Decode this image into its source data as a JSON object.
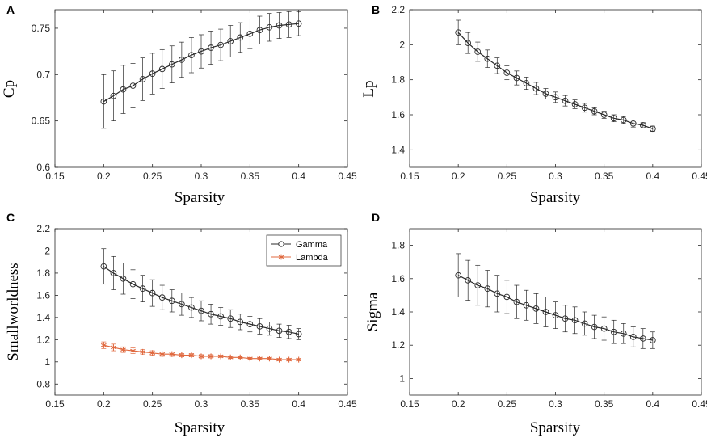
{
  "chart_data": [
    {
      "panel": "A",
      "type": "line",
      "xlabel": "Sparsity",
      "ylabel": "Cp",
      "xlim": [
        0.15,
        0.45
      ],
      "ylim": [
        0.6,
        0.77
      ],
      "xticks": [
        "0.15",
        "0.2",
        "0.25",
        "0.3",
        "0.35",
        "0.4",
        "0.45"
      ],
      "yticks": [
        "0.6",
        "0.65",
        "0.7",
        "0.75"
      ],
      "legend": null,
      "series": [
        {
          "name": "Cp",
          "marker": "circle",
          "color": "#2b2b2b",
          "x": [
            0.2,
            0.21,
            0.22,
            0.23,
            0.24,
            0.25,
            0.26,
            0.27,
            0.28,
            0.29,
            0.3,
            0.31,
            0.32,
            0.33,
            0.34,
            0.35,
            0.36,
            0.37,
            0.38,
            0.39,
            0.4
          ],
          "y": [
            0.671,
            0.677,
            0.684,
            0.688,
            0.695,
            0.701,
            0.706,
            0.711,
            0.716,
            0.721,
            0.725,
            0.729,
            0.732,
            0.736,
            0.74,
            0.744,
            0.748,
            0.751,
            0.753,
            0.754,
            0.755
          ],
          "err": [
            0.029,
            0.027,
            0.026,
            0.024,
            0.023,
            0.022,
            0.021,
            0.02,
            0.019,
            0.019,
            0.018,
            0.018,
            0.017,
            0.017,
            0.016,
            0.016,
            0.015,
            0.015,
            0.014,
            0.014,
            0.013
          ]
        }
      ]
    },
    {
      "panel": "B",
      "type": "line",
      "xlabel": "Sparsity",
      "ylabel": "Lp",
      "xlim": [
        0.15,
        0.45
      ],
      "ylim": [
        1.3,
        2.2
      ],
      "xticks": [
        "0.15",
        "0.2",
        "0.25",
        "0.3",
        "0.35",
        "0.4",
        "0.45"
      ],
      "yticks": [
        "1.4",
        "1.6",
        "1.8",
        "2",
        "2.2"
      ],
      "legend": null,
      "series": [
        {
          "name": "Lp",
          "marker": "circle",
          "color": "#2b2b2b",
          "x": [
            0.2,
            0.21,
            0.22,
            0.23,
            0.24,
            0.25,
            0.26,
            0.27,
            0.28,
            0.29,
            0.3,
            0.31,
            0.32,
            0.33,
            0.34,
            0.35,
            0.36,
            0.37,
            0.38,
            0.39,
            0.4
          ],
          "y": [
            2.07,
            2.01,
            1.96,
            1.92,
            1.88,
            1.84,
            1.81,
            1.78,
            1.75,
            1.72,
            1.7,
            1.68,
            1.66,
            1.64,
            1.62,
            1.6,
            1.58,
            1.57,
            1.55,
            1.54,
            1.52
          ],
          "err": [
            0.07,
            0.06,
            0.055,
            0.05,
            0.045,
            0.04,
            0.04,
            0.035,
            0.035,
            0.03,
            0.03,
            0.03,
            0.025,
            0.025,
            0.02,
            0.02,
            0.02,
            0.02,
            0.02,
            0.015,
            0.015
          ]
        }
      ]
    },
    {
      "panel": "C",
      "type": "line",
      "xlabel": "Sparsity",
      "ylabel": "Smallworldness",
      "xlim": [
        0.15,
        0.45
      ],
      "ylim": [
        0.7,
        2.2
      ],
      "xticks": [
        "0.15",
        "0.2",
        "0.25",
        "0.3",
        "0.35",
        "0.4",
        "0.45"
      ],
      "yticks": [
        "0.8",
        "1",
        "1.2",
        "1.4",
        "1.6",
        "1.8",
        "2",
        "2.2"
      ],
      "legend": {
        "position": "top-right",
        "entries": [
          "Gamma",
          "Lambda"
        ]
      },
      "series": [
        {
          "name": "Gamma",
          "marker": "circle",
          "color": "#2b2b2b",
          "x": [
            0.2,
            0.21,
            0.22,
            0.23,
            0.24,
            0.25,
            0.26,
            0.27,
            0.28,
            0.29,
            0.3,
            0.31,
            0.32,
            0.33,
            0.34,
            0.35,
            0.36,
            0.37,
            0.38,
            0.39,
            0.4
          ],
          "y": [
            1.86,
            1.8,
            1.75,
            1.7,
            1.66,
            1.62,
            1.58,
            1.55,
            1.52,
            1.49,
            1.46,
            1.43,
            1.41,
            1.39,
            1.36,
            1.34,
            1.32,
            1.3,
            1.28,
            1.27,
            1.25
          ],
          "err": [
            0.16,
            0.15,
            0.14,
            0.13,
            0.12,
            0.12,
            0.11,
            0.1,
            0.1,
            0.09,
            0.09,
            0.09,
            0.08,
            0.08,
            0.07,
            0.07,
            0.07,
            0.06,
            0.06,
            0.06,
            0.05
          ]
        },
        {
          "name": "Lambda",
          "marker": "star",
          "color": "#e0693f",
          "x": [
            0.2,
            0.21,
            0.22,
            0.23,
            0.24,
            0.25,
            0.26,
            0.27,
            0.28,
            0.29,
            0.3,
            0.31,
            0.32,
            0.33,
            0.34,
            0.35,
            0.36,
            0.37,
            0.38,
            0.39,
            0.4
          ],
          "y": [
            1.15,
            1.13,
            1.11,
            1.1,
            1.09,
            1.08,
            1.07,
            1.07,
            1.06,
            1.06,
            1.05,
            1.05,
            1.05,
            1.04,
            1.04,
            1.03,
            1.03,
            1.03,
            1.02,
            1.02,
            1.02
          ],
          "err": [
            0.03,
            0.03,
            0.025,
            0.025,
            0.02,
            0.02,
            0.02,
            0.02,
            0.015,
            0.015,
            0.015,
            0.015,
            0.01,
            0.01,
            0.01,
            0.01,
            0.01,
            0.01,
            0.01,
            0.01,
            0.01
          ]
        }
      ]
    },
    {
      "panel": "D",
      "type": "line",
      "xlabel": "Sparsity",
      "ylabel": "Sigma",
      "xlim": [
        0.15,
        0.45
      ],
      "ylim": [
        0.9,
        1.9
      ],
      "xticks": [
        "0.15",
        "0.2",
        "0.25",
        "0.3",
        "0.35",
        "0.4",
        "0.45"
      ],
      "yticks": [
        "1",
        "1.2",
        "1.4",
        "1.6",
        "1.8"
      ],
      "legend": null,
      "series": [
        {
          "name": "Sigma",
          "marker": "circle",
          "color": "#2b2b2b",
          "x": [
            0.2,
            0.21,
            0.22,
            0.23,
            0.24,
            0.25,
            0.26,
            0.27,
            0.28,
            0.29,
            0.3,
            0.31,
            0.32,
            0.33,
            0.34,
            0.35,
            0.36,
            0.37,
            0.38,
            0.39,
            0.4
          ],
          "y": [
            1.62,
            1.59,
            1.56,
            1.54,
            1.51,
            1.49,
            1.46,
            1.44,
            1.42,
            1.4,
            1.38,
            1.36,
            1.35,
            1.33,
            1.31,
            1.3,
            1.28,
            1.27,
            1.25,
            1.24,
            1.23
          ],
          "err": [
            0.13,
            0.12,
            0.12,
            0.11,
            0.11,
            0.1,
            0.1,
            0.09,
            0.09,
            0.09,
            0.08,
            0.08,
            0.08,
            0.07,
            0.07,
            0.07,
            0.07,
            0.06,
            0.06,
            0.06,
            0.05
          ]
        }
      ]
    }
  ]
}
